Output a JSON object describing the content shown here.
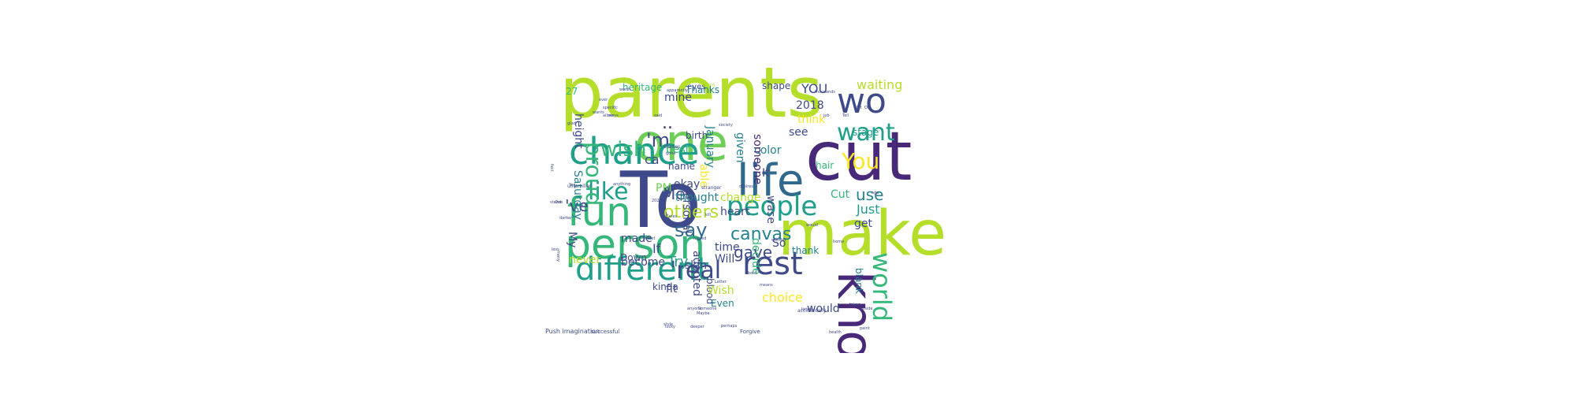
{
  "word_cloud": {
    "background": "#ffffff",
    "palette": {
      "dark_purple": "#440154",
      "indigo": "#482878",
      "slate_blue": "#3e4a89",
      "steel_blue": "#31688e",
      "teal_blue": "#26828e",
      "teal": "#1f9e89",
      "green": "#35b779",
      "light_green": "#6ece58",
      "lime": "#b5de2b",
      "yellow": "#fde725"
    },
    "words": [
      {
        "text": "parents",
        "color": "#b5de2b"
      },
      {
        "text": "To",
        "color": "#3e4a89"
      },
      {
        "text": "cut",
        "color": "#482878"
      },
      {
        "text": "make",
        "color": "#b5de2b"
      },
      {
        "text": "one",
        "color": "#6ece58"
      },
      {
        "text": "chance",
        "color": "#1f9e89"
      },
      {
        "text": "person",
        "color": "#35b779"
      },
      {
        "text": "life",
        "color": "#31688e"
      },
      {
        "text": "know",
        "color": "#482878"
      },
      {
        "text": "fun",
        "color": "#35b779"
      },
      {
        "text": "wo",
        "color": "#3e4a89"
      },
      {
        "text": "different",
        "color": "#1f9e89"
      },
      {
        "text": "rest",
        "color": "#3e4a89"
      },
      {
        "text": "people",
        "color": "#1f9e89"
      },
      {
        "text": "'real",
        "color": "#3e4a89"
      },
      {
        "text": "world",
        "color": "#35b779"
      },
      {
        "text": "want",
        "color": "#1f9e89"
      },
      {
        "text": "wish",
        "color": "#35b779"
      },
      {
        "text": "like",
        "color": "#1f9e89"
      },
      {
        "text": "You",
        "color": "#fde725"
      },
      {
        "text": "gave",
        "color": "#3e4a89"
      },
      {
        "text": "canvas",
        "color": "#26828e"
      },
      {
        "text": "say",
        "color": "#31688e"
      },
      {
        "text": "proud",
        "color": "#35b779"
      },
      {
        "text": "'m",
        "color": "#3e4a89"
      },
      {
        "text": "others",
        "color": "#b5de2b"
      },
      {
        "text": "use",
        "color": "#26828e"
      },
      {
        "text": "Me",
        "color": "#3e4a89"
      },
      {
        "text": "..",
        "color": "#482878"
      },
      {
        "text": "'ve",
        "color": "#3e4a89"
      },
      {
        "text": "waiting",
        "color": "#b5de2b"
      },
      {
        "text": "Just",
        "color": "#1f9e89"
      },
      {
        "text": "Cut",
        "color": "#35b779"
      },
      {
        "text": "get",
        "color": "#3e4a89"
      },
      {
        "text": "YOU",
        "color": "#3e4a89"
      },
      {
        "text": "2018",
        "color": "#3e4a89"
      },
      {
        "text": "think",
        "color": "#fde725"
      },
      {
        "text": "see",
        "color": "#3e4a89"
      },
      {
        "text": "stage",
        "color": "#1f9e89"
      },
      {
        "text": "hair",
        "color": "#35b779"
      },
      {
        "text": "It",
        "color": "#3e4a89"
      },
      {
        "text": "wase",
        "color": "#3e4a89"
      },
      {
        "text": "color",
        "color": "#26828e"
      },
      {
        "text": "someone",
        "color": "#482878"
      },
      {
        "text": "given",
        "color": "#26828e"
      },
      {
        "text": "January",
        "color": "#26828e"
      },
      {
        "text": "able",
        "color": "#fde725"
      },
      {
        "text": "best",
        "color": "#35b779"
      },
      {
        "text": "name",
        "color": "#3e4a89"
      },
      {
        "text": "personal",
        "color": "#3e4a89"
      },
      {
        "text": "birth",
        "color": "#3e4a89"
      },
      {
        "text": "mine",
        "color": "#3e4a89"
      },
      {
        "text": "Thanks",
        "color": "#26828e"
      },
      {
        "text": "eyes",
        "color": "#3e4a89"
      },
      {
        "text": "heritage",
        "color": "#35b779"
      },
      {
        "text": "height",
        "color": "#3e4a89"
      },
      {
        "text": "27",
        "color": "#35b779"
      },
      {
        "text": "Saturday",
        "color": "#26828e"
      },
      {
        "text": "shape",
        "color": "#3e4a89"
      },
      {
        "text": "ca",
        "color": "#3e4a89"
      },
      {
        "text": "okay",
        "color": "#3e4a89"
      },
      {
        "text": "thought",
        "color": "#26828e"
      },
      {
        "text": "change",
        "color": "#b5de2b"
      },
      {
        "text": "heart",
        "color": "#3e4a89"
      },
      {
        "text": "PM",
        "color": "#6ece58"
      },
      {
        "text": "adopted",
        "color": "#3e4a89"
      },
      {
        "text": "time",
        "color": "#3e4a89"
      },
      {
        "text": "Will",
        "color": "#3e4a89"
      },
      {
        "text": "decide",
        "color": "#35b779"
      },
      {
        "text": "So",
        "color": "#3e4a89"
      },
      {
        "text": "thank",
        "color": "#26828e"
      },
      {
        "text": "blank",
        "color": "#26828e"
      },
      {
        "text": "If",
        "color": "#3e4a89"
      },
      {
        "text": "become",
        "color": "#3e4a89"
      },
      {
        "text": "made",
        "color": "#3e4a89"
      },
      {
        "text": "Down",
        "color": "#3e4a89"
      },
      {
        "text": "never",
        "color": "#b5de2b"
      },
      {
        "text": "My",
        "color": "#3e4a89"
      },
      {
        "text": "Try",
        "color": "#1f9e89"
      },
      {
        "text": "skin",
        "color": "#3e4a89"
      },
      {
        "text": "fit",
        "color": "#3e4a89"
      },
      {
        "text": "blood",
        "color": "#3e4a89"
      },
      {
        "text": "Wish",
        "color": "#b5de2b"
      },
      {
        "text": "Even",
        "color": "#26828e"
      },
      {
        "text": "choice",
        "color": "#fde725"
      },
      {
        "text": "would",
        "color": "#3e4a89"
      },
      {
        "text": "kinda",
        "color": "#3e4a89"
      },
      {
        "text": "Push imagination",
        "color": "#3e4a89"
      },
      {
        "text": "successful",
        "color": "#3e4a89"
      },
      {
        "text": "Forgive",
        "color": "#3e4a89"
      },
      {
        "text": "accidentally",
        "color": "#3e4a89"
      },
      {
        "text": "thousands",
        "color": "#3e4a89"
      },
      {
        "text": "apparently",
        "color": "#3e4a89"
      },
      {
        "text": "society",
        "color": "#3e4a89"
      },
      {
        "text": "shades",
        "color": "#3e4a89"
      },
      {
        "text": "stranger",
        "color": "#3e4a89"
      },
      {
        "text": "unfamiliar",
        "color": "#3e4a89"
      },
      {
        "text": "anything",
        "color": "#3e4a89"
      },
      {
        "text": "desires",
        "color": "#3e4a89"
      },
      {
        "text": "willing",
        "color": "#b5de2b"
      },
      {
        "text": "Letter",
        "color": "#3e4a89"
      },
      {
        "text": "secret",
        "color": "#3e4a89"
      },
      {
        "text": "hatred",
        "color": "#3e4a89"
      },
      {
        "text": "wonder",
        "color": "#3e4a89"
      },
      {
        "text": "listen",
        "color": "#3e4a89"
      },
      {
        "text": "deeper",
        "color": "#3e4a89"
      },
      {
        "text": "perhaps",
        "color": "#3e4a89"
      },
      {
        "text": "Someone",
        "color": "#3e4a89"
      },
      {
        "text": "anyone",
        "color": "#3e4a89"
      },
      {
        "text": "Maybe",
        "color": "#3e4a89"
      },
      {
        "text": "stand",
        "color": "#3e4a89"
      },
      {
        "text": "worth",
        "color": "#3e4a89"
      },
      {
        "text": "specific",
        "color": "#3e4a89"
      },
      {
        "text": "allow",
        "color": "#3e4a89"
      },
      {
        "text": "less",
        "color": "#3e4a89"
      },
      {
        "text": "many",
        "color": "#3e4a89"
      },
      {
        "text": "darker",
        "color": "#3e4a89"
      },
      {
        "text": "lucky",
        "color": "#3e4a89"
      },
      {
        "text": "style",
        "color": "#3e4a89"
      },
      {
        "text": "means",
        "color": "#3e4a89"
      },
      {
        "text": "bold",
        "color": "#3e4a89"
      },
      {
        "text": "home",
        "color": "#3e4a89"
      },
      {
        "text": "paint",
        "color": "#3e4a89"
      },
      {
        "text": "beside",
        "color": "#3e4a89"
      },
      {
        "text": "health",
        "color": "#3e4a89"
      },
      {
        "text": "taken",
        "color": "#3e4a89"
      },
      {
        "text": "would",
        "color": "#3e4a89"
      },
      {
        "text": "ago",
        "color": "#3e4a89"
      },
      {
        "text": "Tell",
        "color": "#3e4a89"
      },
      {
        "text": "job",
        "color": "#3e4a89"
      },
      {
        "text": "said",
        "color": "#3e4a89"
      },
      {
        "text": "wants",
        "color": "#3e4a89"
      },
      {
        "text": "fact",
        "color": "#3e4a89"
      },
      {
        "text": "One",
        "color": "#3e4a89"
      },
      {
        "text": "Yes",
        "color": "#3e4a89"
      },
      {
        "text": "2022",
        "color": "#3e4a89"
      },
      {
        "text": "Cares",
        "color": "#3e4a89"
      },
      {
        "text": "gone",
        "color": "#3e4a89"
      },
      {
        "text": "kill",
        "color": "#3e4a89"
      },
      {
        "text": "ways",
        "color": "#3e4a89"
      },
      {
        "text": "glad",
        "color": "#3e4a89"
      },
      {
        "text": "ever",
        "color": "#3e4a89"
      },
      {
        "text": "bit",
        "color": "#3e4a89"
      },
      {
        "text": "Ok",
        "color": "#3e4a89"
      },
      {
        "text": "Dad",
        "color": "#3e4a89"
      },
      {
        "text": "sure",
        "color": "#3e4a89"
      },
      {
        "text": "true",
        "color": "#3e4a89"
      }
    ]
  }
}
